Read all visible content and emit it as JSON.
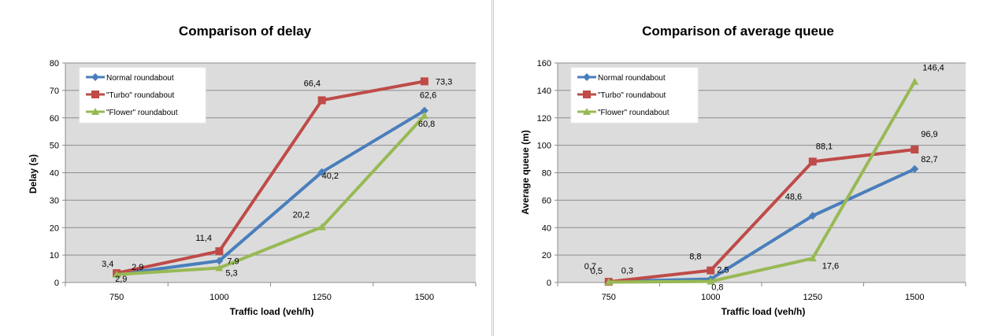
{
  "chart_data": [
    {
      "type": "line",
      "title": "Comparison of delay",
      "xlabel": "Traffic load (veh/h)",
      "ylabel": "Delay (s)",
      "categories": [
        "750",
        "1000",
        "1250",
        "1500"
      ],
      "ylim": [
        0,
        80
      ],
      "yticks": [
        "0",
        "10",
        "20",
        "30",
        "40",
        "50",
        "60",
        "70",
        "80"
      ],
      "grid": true,
      "legend_position": "top-left",
      "series": [
        {
          "name": "Normal roundabout",
          "color": "#4a7ebb",
          "marker": "diamond",
          "values": [
            2.9,
            7.9,
            40.2,
            62.6
          ],
          "labels": [
            "2,9",
            "7,9",
            "40,2",
            "62,6"
          ]
        },
        {
          "name": "\"Turbo\" roundabout",
          "color": "#be4b48",
          "marker": "square",
          "values": [
            3.4,
            11.4,
            66.4,
            73.3
          ],
          "labels": [
            "3,4",
            "11,4",
            "66,4",
            "73,3"
          ]
        },
        {
          "name": "\"Flower\" roundabout",
          "color": "#98b954",
          "marker": "triangle",
          "values": [
            2.9,
            5.3,
            20.2,
            60.8
          ],
          "labels": [
            "2,9",
            "5,3",
            "20,2",
            "60,8"
          ]
        }
      ]
    },
    {
      "type": "line",
      "title": "Comparison of average queue",
      "xlabel": "Traffic load (veh/h)",
      "ylabel": "Average queue (m)",
      "categories": [
        "750",
        "1000",
        "1250",
        "1500"
      ],
      "ylim": [
        0,
        160
      ],
      "yticks": [
        "0",
        "20",
        "40",
        "60",
        "80",
        "100",
        "120",
        "140",
        "160"
      ],
      "grid": true,
      "legend_position": "top-left",
      "series": [
        {
          "name": "Normal roundabout",
          "color": "#4a7ebb",
          "marker": "diamond",
          "values": [
            0.7,
            2.5,
            48.6,
            82.7
          ],
          "labels": [
            "0,7",
            "2,5",
            "48,6",
            "82,7"
          ]
        },
        {
          "name": "\"Turbo\" roundabout",
          "color": "#be4b48",
          "marker": "square",
          "values": [
            0.5,
            8.8,
            88.1,
            96.9
          ],
          "labels": [
            "0,5",
            "8,8",
            "88,1",
            "96,9"
          ]
        },
        {
          "name": "\"Flower\" roundabout",
          "color": "#98b954",
          "marker": "triangle",
          "values": [
            0.3,
            0.8,
            17.6,
            146.4
          ],
          "labels": [
            "0,3",
            "0,8",
            "17,6",
            "146,4"
          ]
        }
      ]
    }
  ]
}
